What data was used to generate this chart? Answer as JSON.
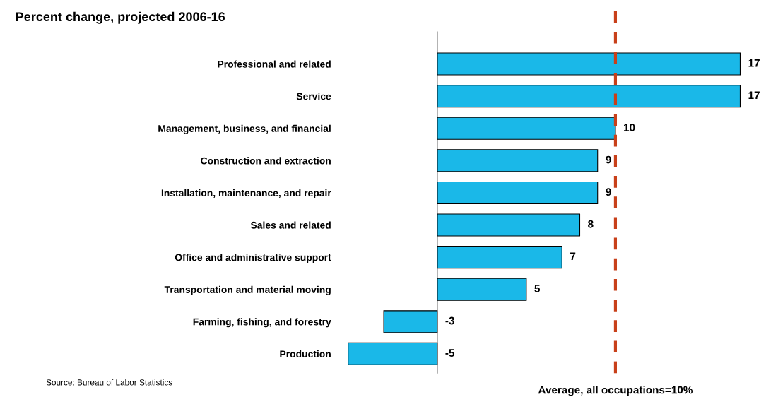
{
  "chart_data": {
    "type": "bar",
    "orientation": "horizontal",
    "title": "Percent change, projected 2006-16",
    "categories": [
      "Professional and related",
      "Service",
      "Management, business, and financial",
      "Construction and extraction",
      "Installation, maintenance, and repair",
      "Sales and related",
      "Office and administrative support",
      "Transportation and material moving",
      "Farming, fishing, and forestry",
      "Production"
    ],
    "values": [
      17,
      17,
      10,
      9,
      9,
      8,
      7,
      5,
      -3,
      -5
    ],
    "color": "#1ab8e8",
    "data_labels": true,
    "ref_lines": [
      {
        "axis": "x",
        "value": 10,
        "label": "Average, all occupations=10%",
        "color": "#c8401a",
        "line_style": "dashed"
      }
    ],
    "annotations": [
      "Source: Bureau of Labor Statistics"
    ],
    "grid": false,
    "legend": false
  }
}
